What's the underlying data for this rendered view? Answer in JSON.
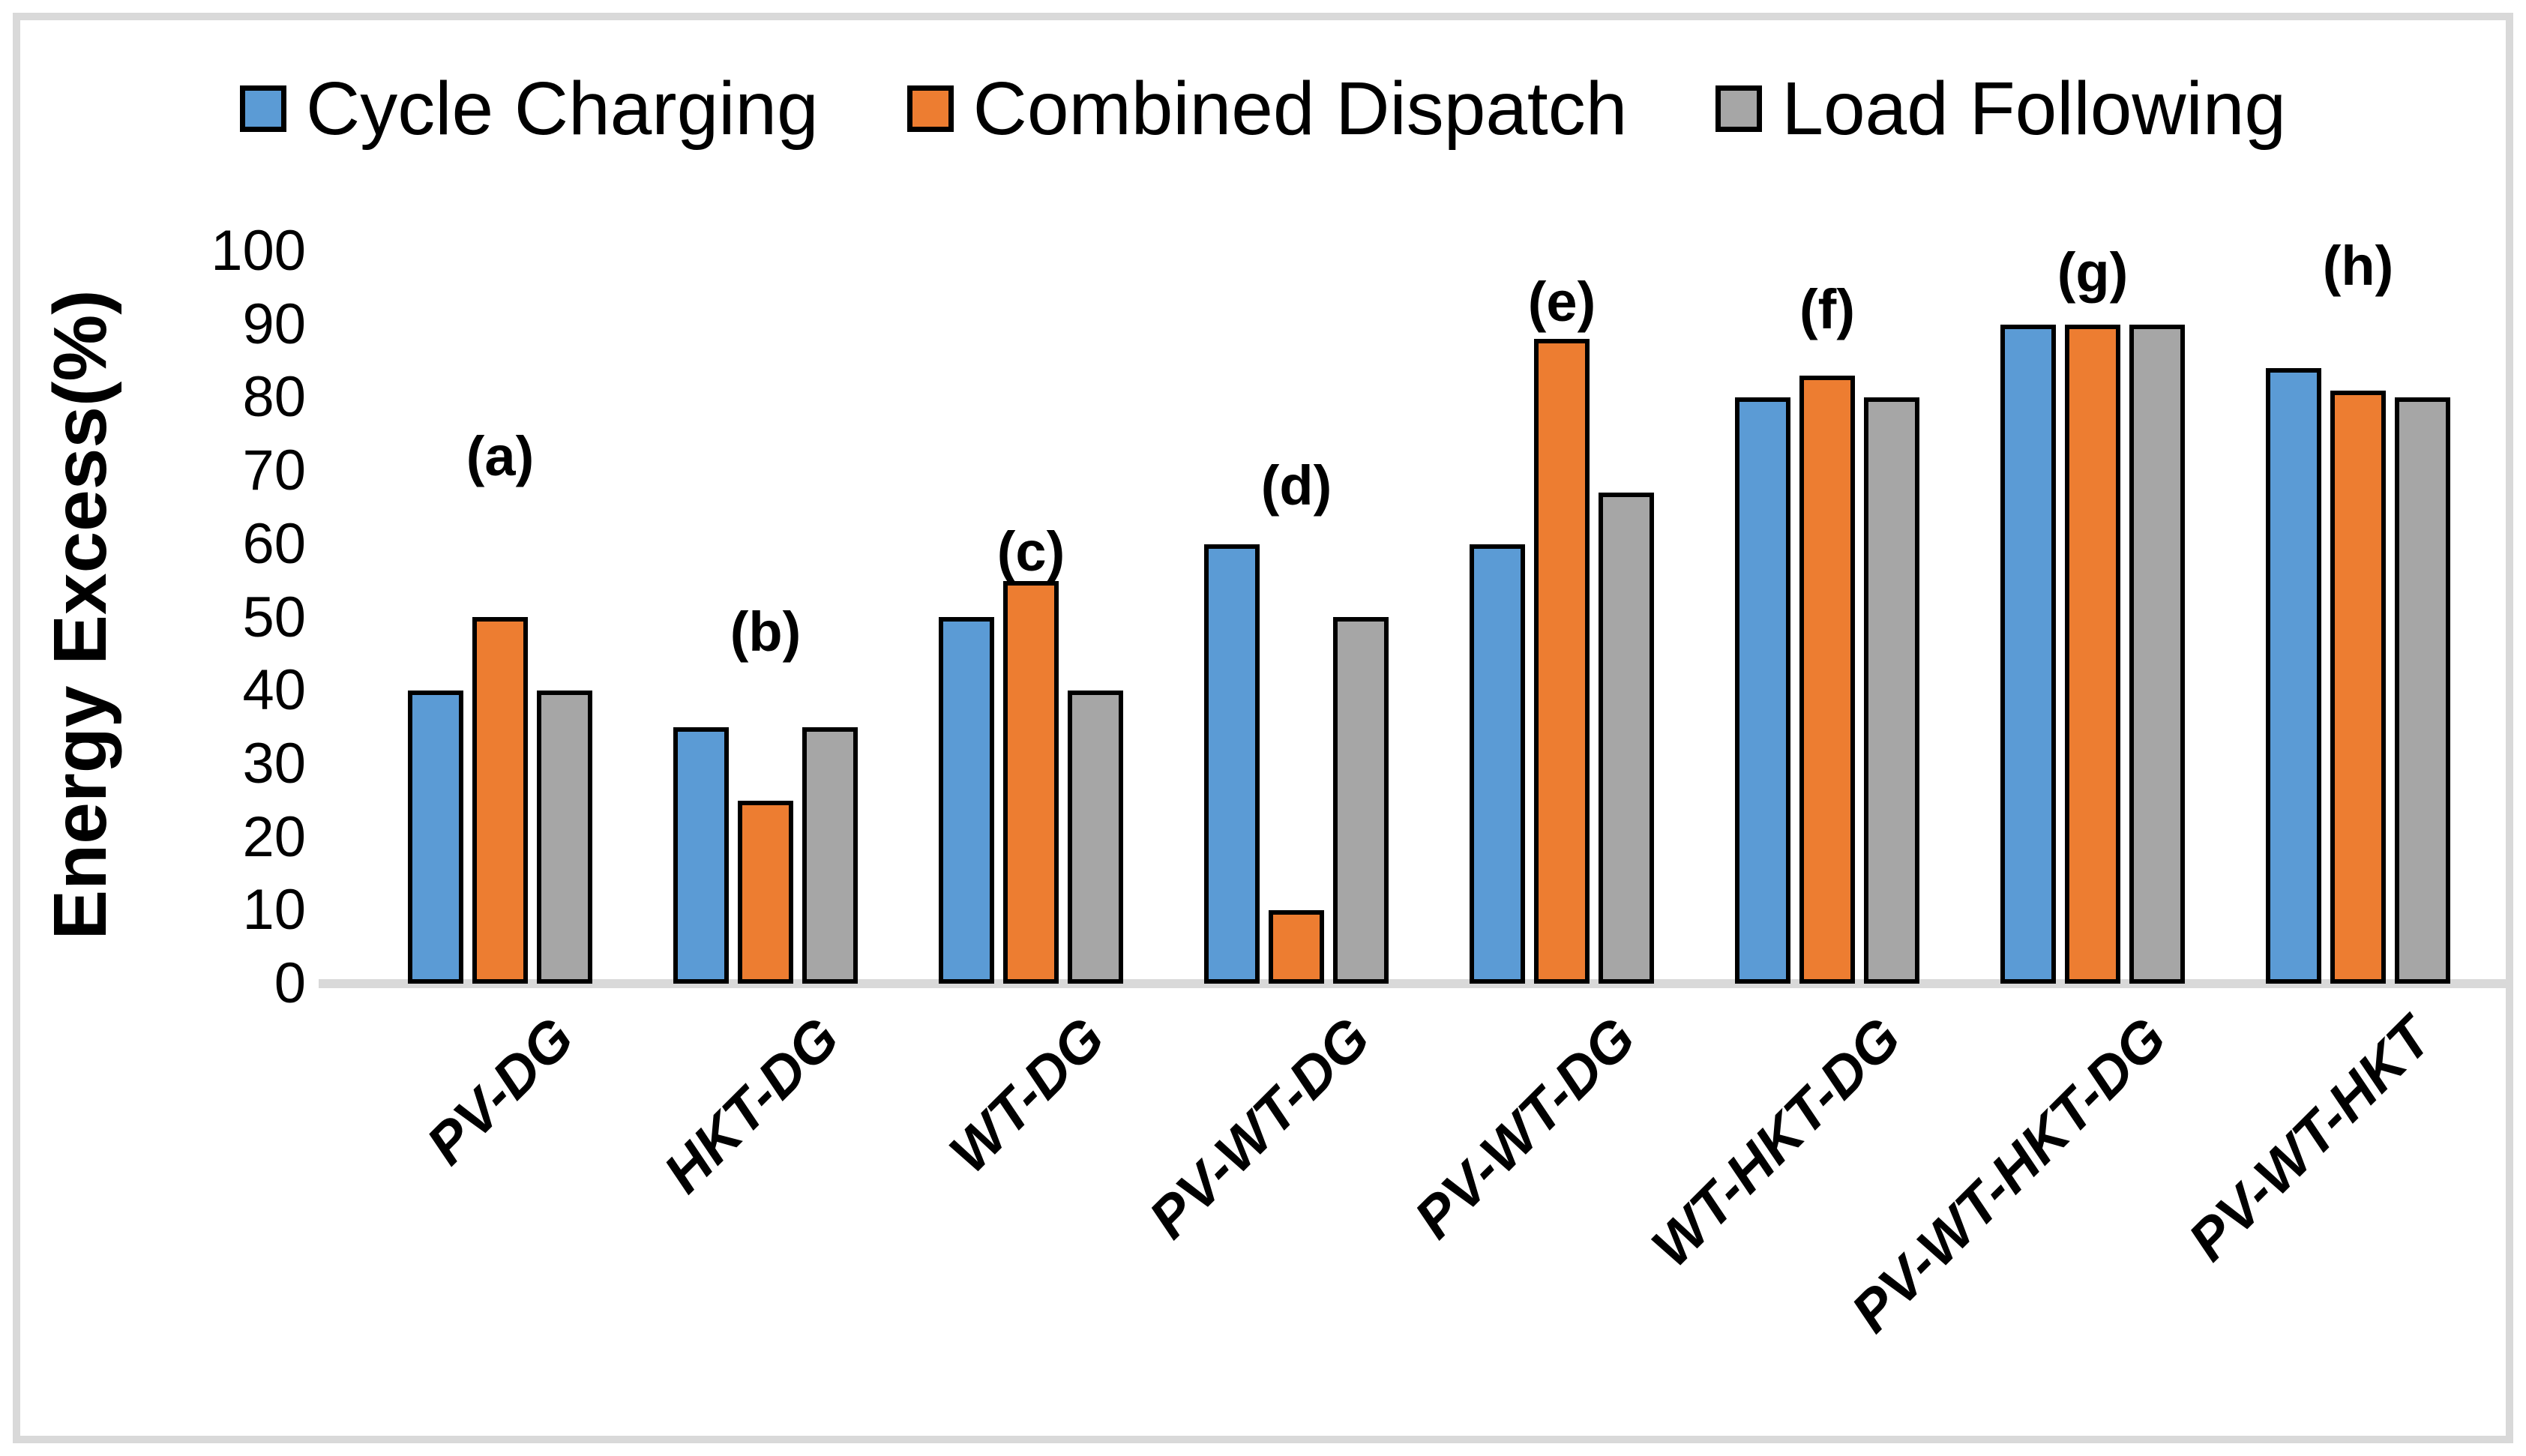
{
  "chart_data": {
    "type": "bar",
    "title": "",
    "ylabel": "Energy Excess(%)",
    "xlabel": "",
    "ylim": [
      0,
      100
    ],
    "yticks": [
      0,
      10,
      20,
      30,
      40,
      50,
      60,
      70,
      80,
      90,
      100
    ],
    "grid": false,
    "legend_position": "top",
    "categories": [
      "PV-DG",
      "HKT-DG",
      "WT-DG",
      "PV-WT-DG",
      "PV-WT-DG",
      "WT-HKT-DG",
      "PV-WT-HKT-DG",
      "PV-WT-HKT"
    ],
    "series": [
      {
        "name": "Cycle Charging",
        "color": "#5B9BD5",
        "values": [
          40,
          35,
          50,
          60,
          60,
          80,
          90,
          84
        ]
      },
      {
        "name": "Combined Dispatch",
        "color": "#ED7D31",
        "values": [
          50,
          25,
          55,
          10,
          88,
          83,
          90,
          81
        ]
      },
      {
        "name": "Load Following",
        "color": "#A6A6A6",
        "values": [
          40,
          35,
          40,
          50,
          67,
          80,
          90,
          80
        ]
      }
    ],
    "annotations": [
      {
        "label": "(a)",
        "category_index": 0,
        "y": 72
      },
      {
        "label": "(b)",
        "category_index": 1,
        "y": 48
      },
      {
        "label": "(c)",
        "category_index": 2,
        "y": 59
      },
      {
        "label": "(d)",
        "category_index": 3,
        "y": 68
      },
      {
        "label": "(e)",
        "category_index": 4,
        "y": 93
      },
      {
        "label": "(f)",
        "category_index": 5,
        "y": 92
      },
      {
        "label": "(g)",
        "category_index": 6,
        "y": 97
      },
      {
        "label": "(h)",
        "category_index": 7,
        "y": 98
      }
    ],
    "bar_border_color": "#000000",
    "axis_line_color": "#D9D9D9",
    "frame_color": "#D9D9D9"
  }
}
